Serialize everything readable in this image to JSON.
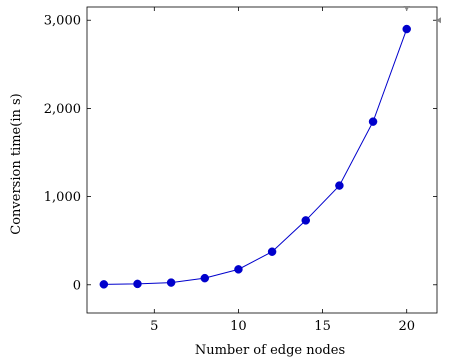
{
  "colors": {
    "series": "#0000cc",
    "axis": "#000000",
    "background": "#ffffff",
    "clip_markers": "#888888"
  },
  "chart_data": {
    "type": "line",
    "title": "",
    "xlabel": "Number of edge nodes",
    "ylabel": "Conversion time(in s)",
    "xlim": [
      1,
      21.8
    ],
    "ylim": [
      -320,
      3150
    ],
    "x_ticks": [
      5,
      10,
      15,
      20
    ],
    "x_tick_labels": [
      "5",
      "10",
      "15",
      "20"
    ],
    "y_ticks": [
      0,
      1000,
      2000,
      3000
    ],
    "y_tick_labels": [
      "0",
      "1,000",
      "2,000",
      "3,000"
    ],
    "grid": false,
    "legend": "none",
    "marker": "circle",
    "series": [
      {
        "x": [
          2,
          4,
          6,
          8,
          10,
          12,
          14,
          16,
          18,
          20
        ],
        "y": [
          5,
          10,
          25,
          75,
          175,
          375,
          730,
          1125,
          1850,
          2900
        ]
      }
    ]
  }
}
